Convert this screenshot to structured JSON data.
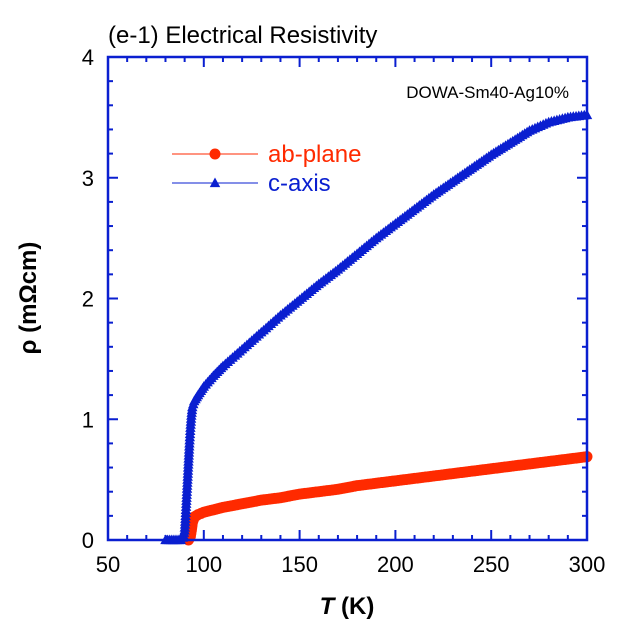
{
  "chart_data": {
    "type": "scatter",
    "title": "(e-1) Electrical Resistivity",
    "annotation": "DOWA-Sm40-Ag10%",
    "xlabel_italic": "T",
    "xlabel_rest": " (K)",
    "ylabel": "ρ (mΩcm)",
    "xlim": [
      50,
      300
    ],
    "ylim": [
      0,
      4
    ],
    "xticks": [
      50,
      100,
      150,
      200,
      250,
      300
    ],
    "yticks": [
      0,
      1,
      2,
      3,
      4
    ],
    "grid": false,
    "legend_position": "upper-left",
    "series": [
      {
        "name": "ab-plane",
        "color": "#ff2a00",
        "marker": "circle",
        "x": [
          92,
          93,
          93.5,
          94,
          95,
          97,
          100,
          105,
          110,
          120,
          130,
          140,
          150,
          160,
          170,
          180,
          190,
          200,
          210,
          220,
          230,
          240,
          250,
          260,
          270,
          280,
          290,
          300
        ],
        "y": [
          0.0,
          0.03,
          0.08,
          0.14,
          0.19,
          0.21,
          0.23,
          0.25,
          0.27,
          0.3,
          0.33,
          0.35,
          0.38,
          0.4,
          0.42,
          0.45,
          0.47,
          0.49,
          0.51,
          0.53,
          0.55,
          0.57,
          0.59,
          0.61,
          0.63,
          0.65,
          0.67,
          0.69
        ]
      },
      {
        "name": "c-axis",
        "color": "#0a1fd0",
        "marker": "triangle",
        "x": [
          80,
          82,
          84,
          86,
          88,
          89,
          90,
          90.5,
          91,
          91.5,
          92,
          92.5,
          93,
          93.5,
          94,
          95,
          97,
          100,
          105,
          110,
          120,
          130,
          140,
          150,
          160,
          170,
          180,
          190,
          200,
          210,
          220,
          230,
          240,
          250,
          260,
          270,
          280,
          290,
          300
        ],
        "y": [
          0.0,
          0.0,
          0.0,
          0.0,
          0.0,
          0.02,
          0.08,
          0.2,
          0.35,
          0.5,
          0.65,
          0.8,
          0.93,
          1.03,
          1.1,
          1.15,
          1.2,
          1.27,
          1.36,
          1.44,
          1.58,
          1.72,
          1.86,
          1.99,
          2.12,
          2.24,
          2.37,
          2.5,
          2.62,
          2.74,
          2.86,
          2.97,
          3.08,
          3.19,
          3.29,
          3.39,
          3.46,
          3.5,
          3.52
        ]
      }
    ]
  }
}
